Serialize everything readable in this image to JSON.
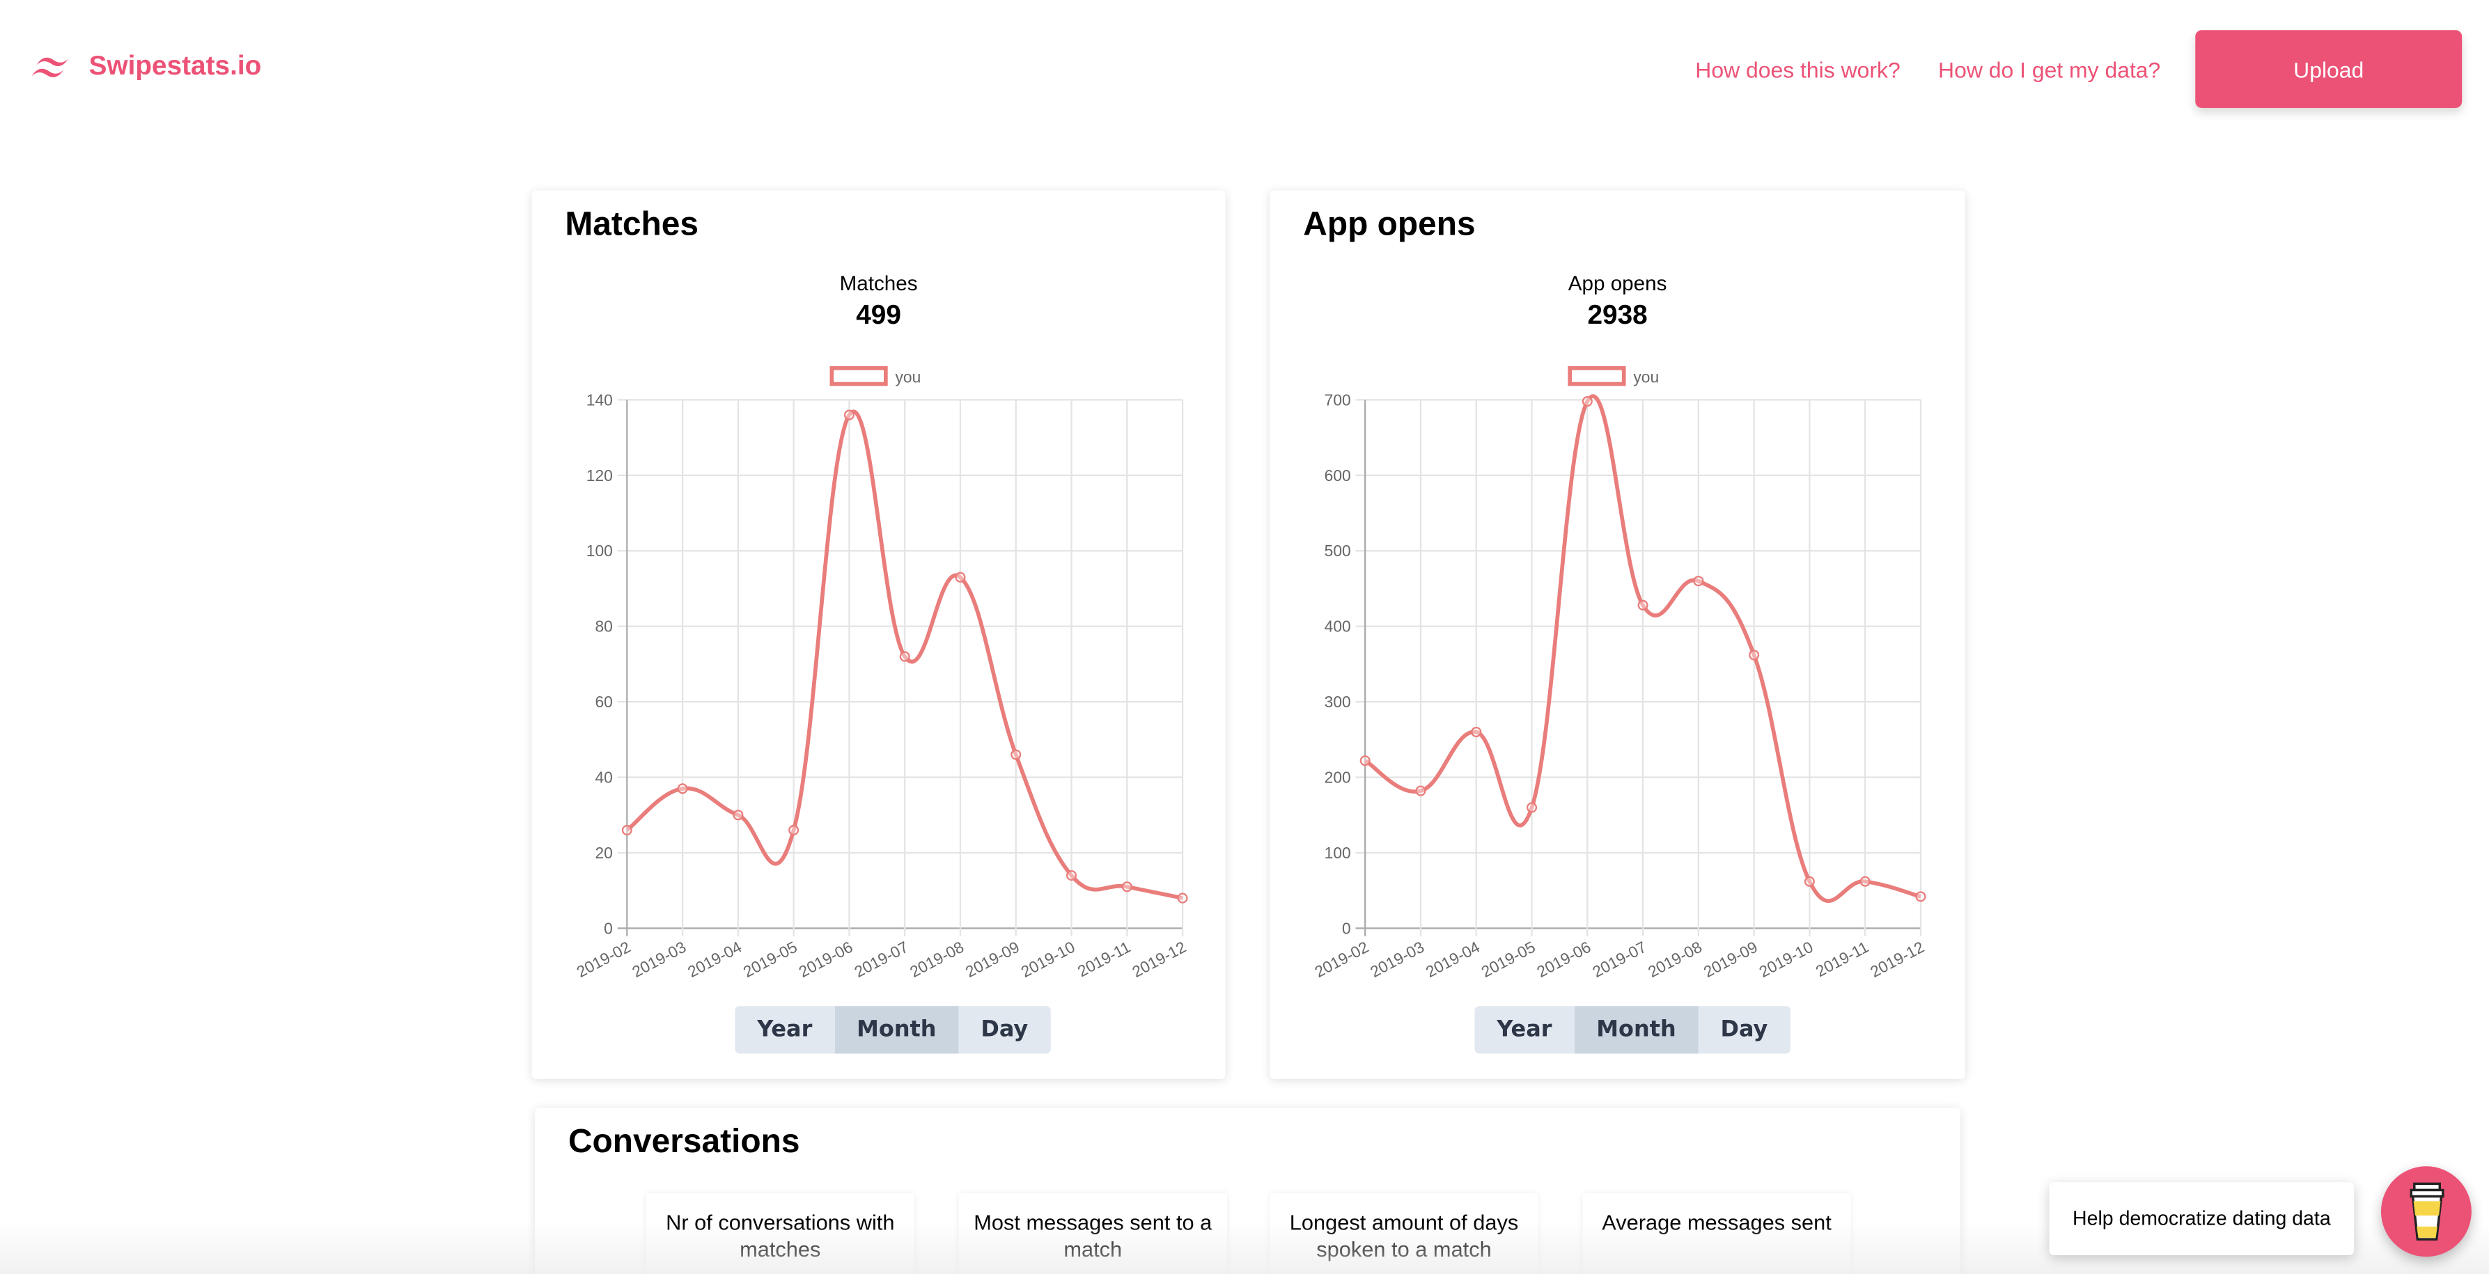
{
  "header": {
    "logo_text": "Swipestats.io",
    "links": [
      "How does this work?",
      "How do I get my data?"
    ],
    "upload_label": "Upload",
    "brand_color": "#ec5276"
  },
  "range_options": [
    "Year",
    "Month",
    "Day"
  ],
  "selected_range": "Month",
  "chart_data": [
    {
      "type": "line",
      "card_title": "Matches",
      "title": "Matches",
      "total": "499",
      "legend": [
        "you"
      ],
      "legend_placement": "top",
      "grid": true,
      "smooth": true,
      "color": "#e97d7b",
      "categories": [
        "2019-02",
        "2019-03",
        "2019-04",
        "2019-05",
        "2019-06",
        "2019-07",
        "2019-08",
        "2019-09",
        "2019-10",
        "2019-11",
        "2019-12"
      ],
      "series": [
        {
          "name": "you",
          "values": [
            26,
            37,
            30,
            26,
            136,
            72,
            93,
            46,
            14,
            11,
            8
          ]
        }
      ],
      "ylim": [
        0,
        140
      ],
      "yticks": [
        0,
        20,
        40,
        60,
        80,
        100,
        120,
        140
      ]
    },
    {
      "type": "line",
      "card_title": "App opens",
      "title": "App opens",
      "total": "2938",
      "legend": [
        "you"
      ],
      "legend_placement": "top",
      "grid": true,
      "smooth": true,
      "color": "#e97d7b",
      "categories": [
        "2019-02",
        "2019-03",
        "2019-04",
        "2019-05",
        "2019-06",
        "2019-07",
        "2019-08",
        "2019-09",
        "2019-10",
        "2019-11",
        "2019-12"
      ],
      "series": [
        {
          "name": "you",
          "values": [
            222,
            182,
            260,
            160,
            698,
            428,
            460,
            362,
            62,
            62,
            42
          ]
        }
      ],
      "ylim": [
        0,
        700
      ],
      "yticks": [
        0,
        100,
        200,
        300,
        400,
        500,
        600,
        700
      ]
    }
  ],
  "conversations": {
    "title": "Conversations",
    "stats": [
      {
        "label": "Nr of conversations with matches"
      },
      {
        "label": "Most messages sent to a match"
      },
      {
        "label": "Longest amount of days spoken to a match"
      },
      {
        "label": "Average messages sent"
      }
    ]
  },
  "help": {
    "text": "Help democratize dating data",
    "icon": "coffee-cup-icon"
  }
}
